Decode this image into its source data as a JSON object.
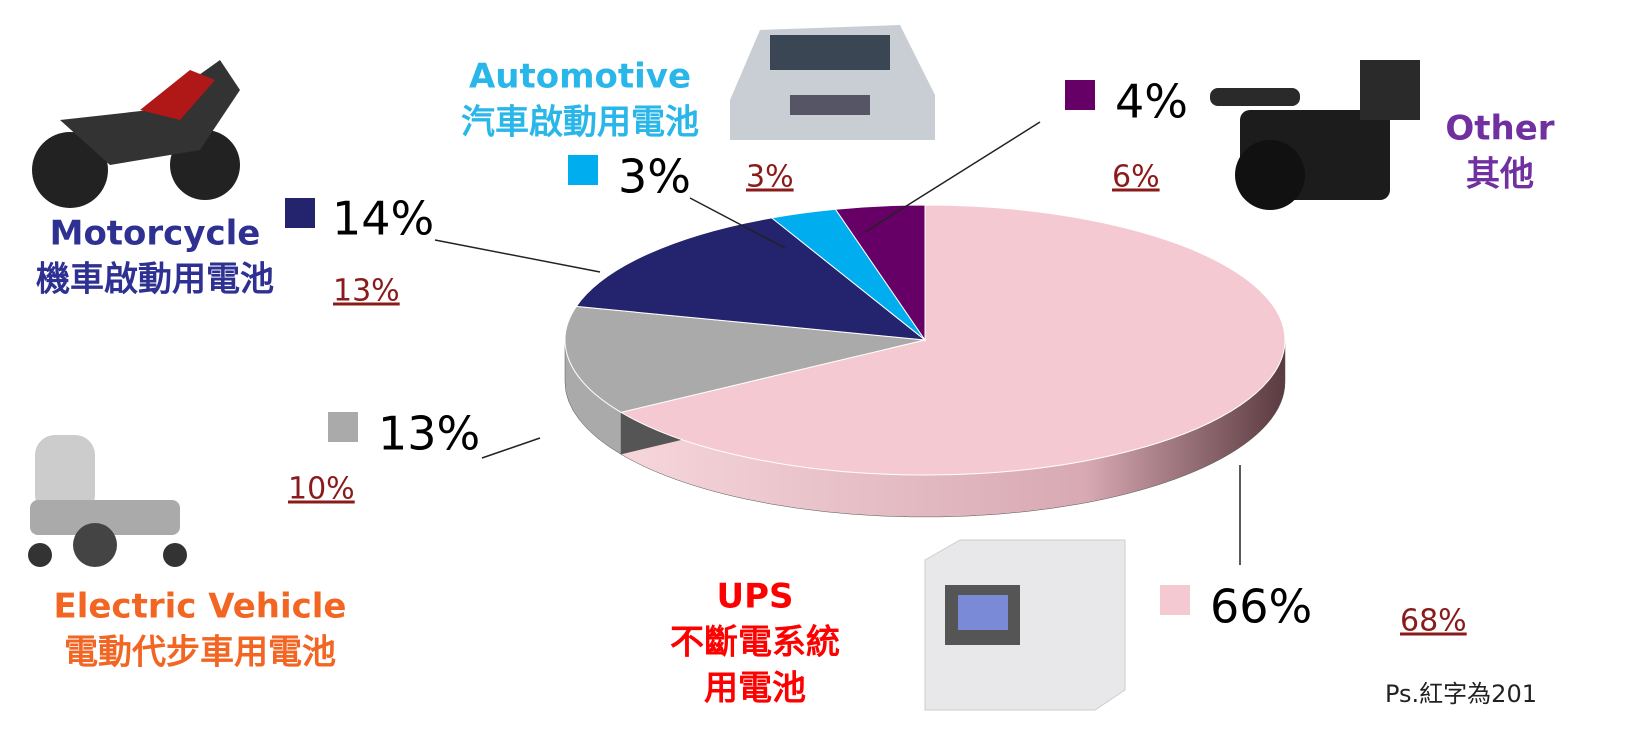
{
  "chart_data": {
    "type": "pie",
    "categories": [
      "UPS",
      "Electric Vehicle",
      "Motorcycle",
      "Automotive",
      "Other"
    ],
    "categories_zh": [
      [
        "不斷電系統",
        "用電池"
      ],
      [
        "電動代步車用電池"
      ],
      [
        "機車啟動用電池"
      ],
      [
        "汽車啟動用電池"
      ],
      [
        "其他"
      ]
    ],
    "values": [
      66,
      13,
      14,
      3,
      4
    ],
    "value_labels": [
      "66%",
      "13%",
      "14%",
      "3%",
      "4%"
    ],
    "previous_values": [
      68,
      10,
      13,
      3,
      6
    ],
    "previous_value_labels": [
      "68%",
      "10%",
      "13%",
      "3%",
      "6%"
    ],
    "colors": [
      "#f4c9d1",
      "#aaaaaa",
      "#23236e",
      "#00aeef",
      "#660066"
    ],
    "label_colors": [
      "#ff0000",
      "#f26522",
      "#2e3192",
      "#29b6e8",
      "#7030a0"
    ],
    "footnote": "Ps.紅字為201"
  }
}
